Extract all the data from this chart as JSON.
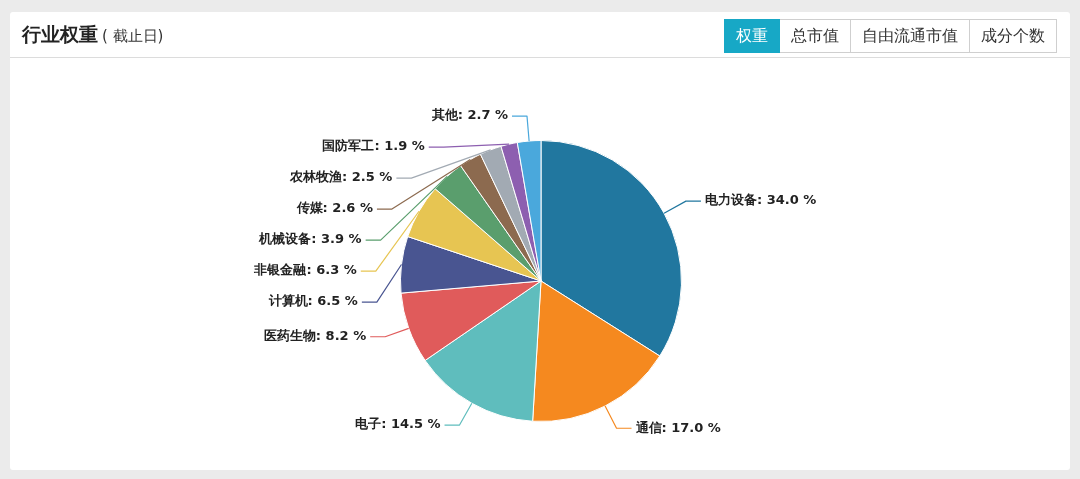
{
  "chart_data": {
    "type": "pie",
    "title": "行业权重",
    "subtitle": "( 截止日)",
    "annotations": [
      "权重",
      "总市值",
      "自由流通市值",
      "成分个数"
    ],
    "categories": [
      "电力设备",
      "通信",
      "电子",
      "医药生物",
      "计算机",
      "非银金融",
      "机械设备",
      "传媒",
      "农林牧渔",
      "国防军工",
      "其他"
    ],
    "values": [
      34.0,
      17.0,
      14.5,
      8.2,
      6.5,
      6.3,
      3.9,
      2.6,
      2.5,
      1.9,
      2.7
    ],
    "value_labels": [
      "34.0 %",
      "17.0 %",
      "14.5 %",
      "8.2 %",
      "6.5 %",
      "6.3 %",
      "3.9 %",
      "2.6 %",
      "2.5 %",
      "1.9 %",
      "2.7 %"
    ],
    "colors": [
      "#21779f",
      "#f5891f",
      "#5fbdbd",
      "#e05b5b",
      "#495591",
      "#e7c552",
      "#5a9e6d",
      "#8c6a4f",
      "#a2aab3",
      "#8d5fb0",
      "#4aa8dc"
    ]
  }
}
